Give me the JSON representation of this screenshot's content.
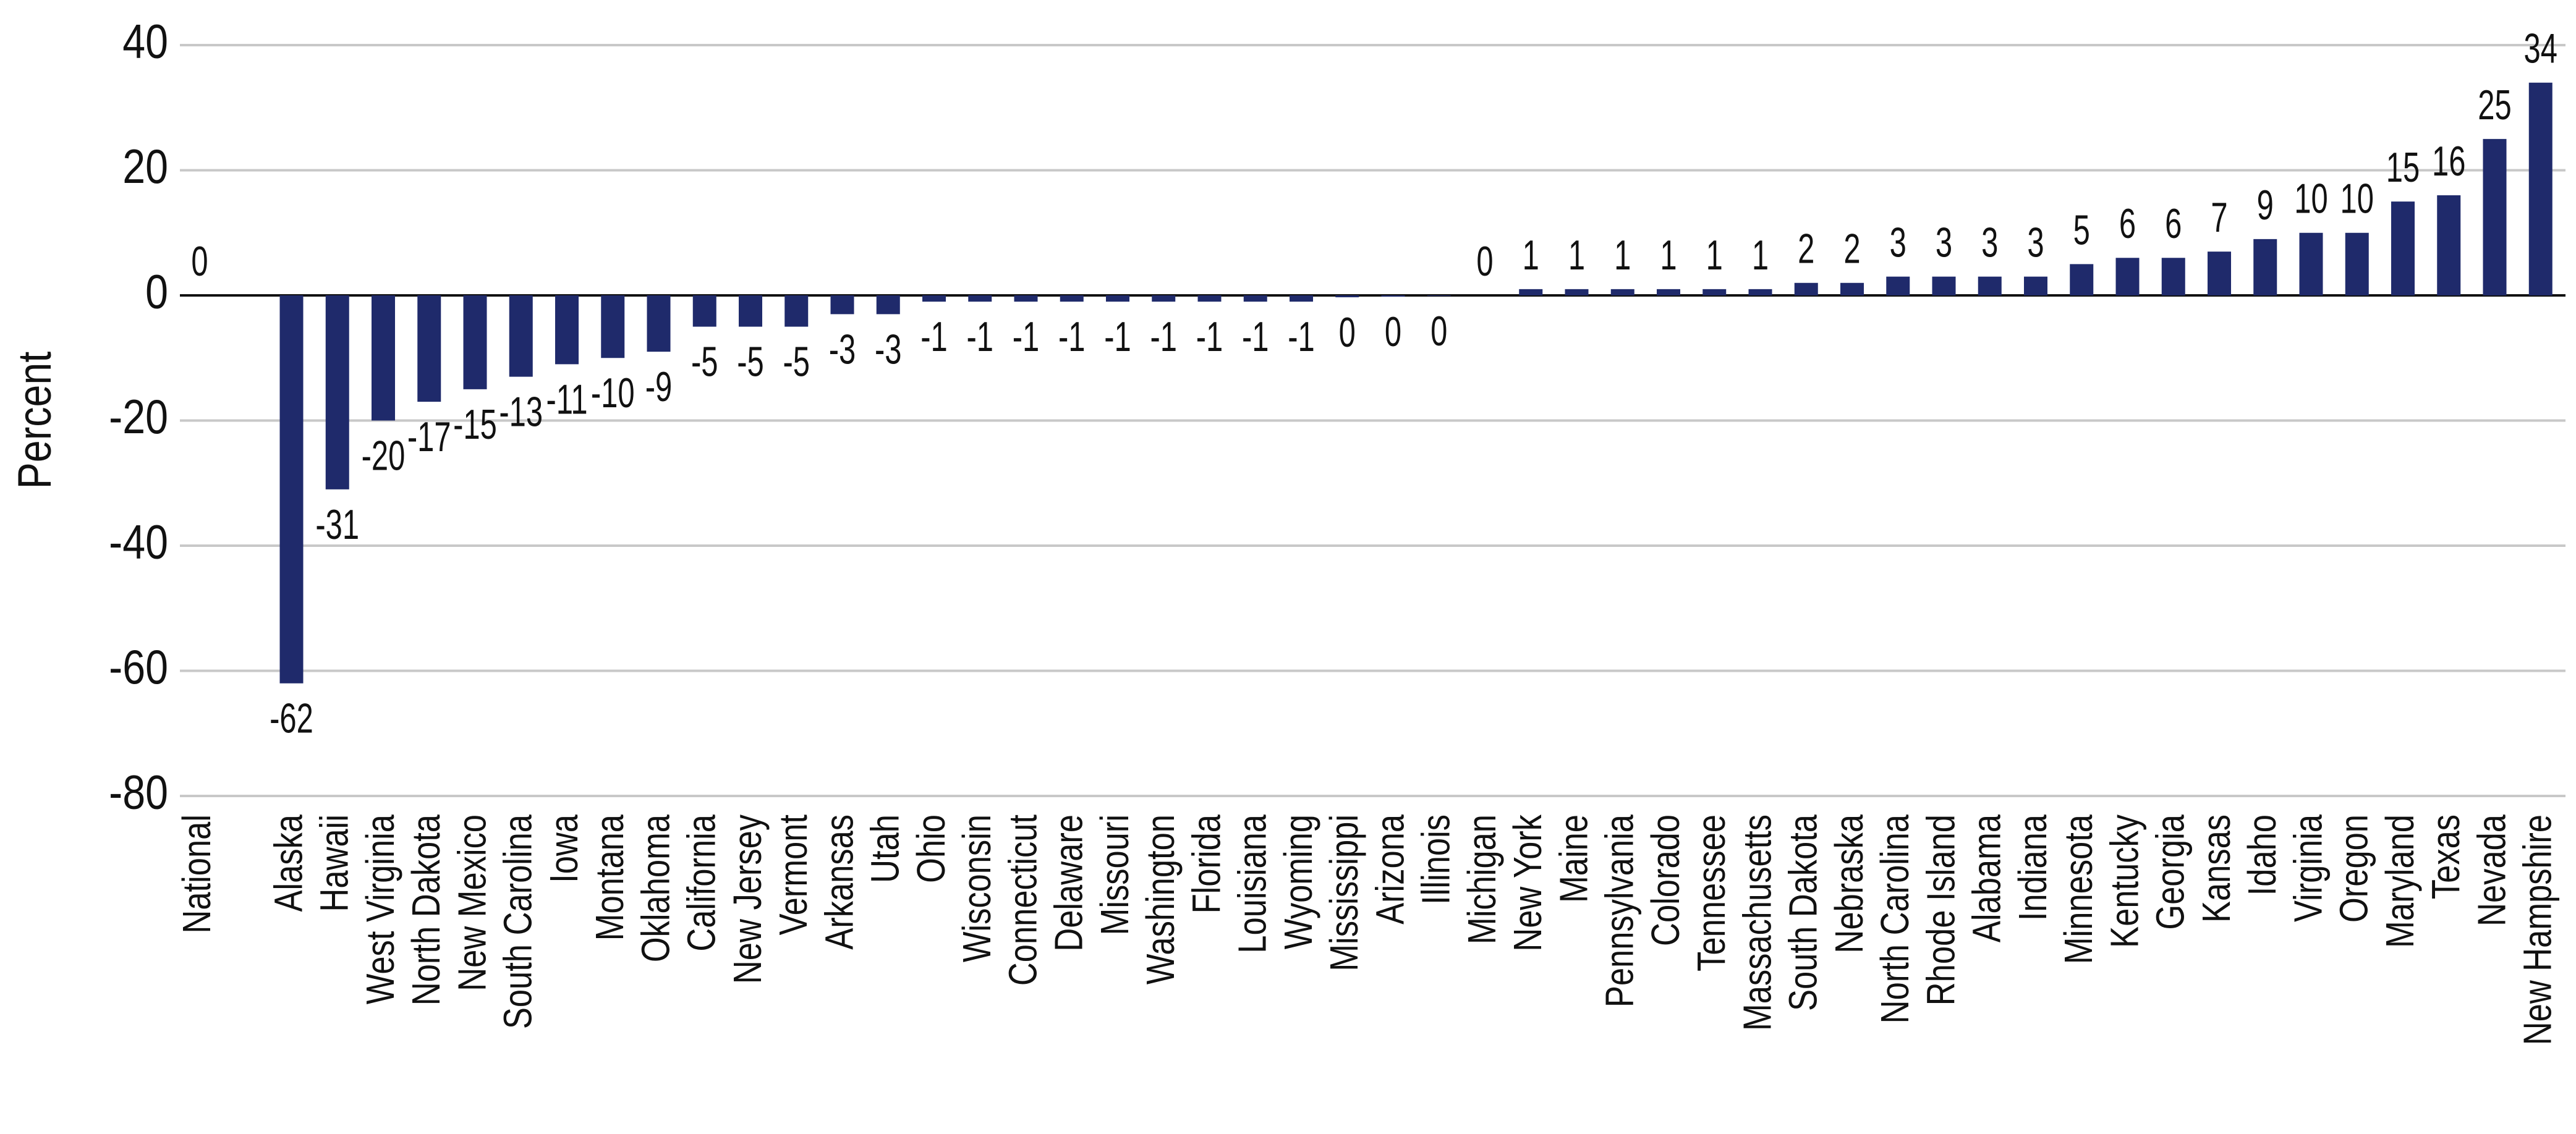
{
  "chart_data": {
    "type": "bar",
    "ylabel": "Percent",
    "categories": [
      "National",
      null,
      "Alaska",
      "Hawaii",
      "West Virginia",
      "North Dakota",
      "New Mexico",
      "South Carolina",
      "Iowa",
      "Montana",
      "Oklahoma",
      "California",
      "New Jersey",
      "Vermont",
      "Arkansas",
      "Utah",
      "Ohio",
      "Wisconsin",
      "Connecticut",
      "Delaware",
      "Missouri",
      "Washington",
      "Florida",
      "Louisiana",
      "Wyoming",
      "Mississippi",
      "Arizona",
      "Illinois",
      "Michigan",
      "New York",
      "Maine",
      "Pennsylvania",
      "Colorado",
      "Tennessee",
      "Massachusetts",
      "South Dakota",
      "Nebraska",
      "North Carolina",
      "Rhode Island",
      "Alabama",
      "Indiana",
      "Minnesota",
      "Kentucky",
      "Georgia",
      "Kansas",
      "Idaho",
      "Virginia",
      "Oregon",
      "Maryland",
      "Texas",
      "Nevada",
      "New Hampshire"
    ],
    "values": [
      0,
      null,
      -62,
      -31,
      -20,
      -17,
      -15,
      -13,
      -11,
      -10,
      -9,
      -5,
      -5,
      -5,
      -3,
      -3,
      -1,
      -1,
      -1,
      -1,
      -1,
      -1,
      -1,
      -1,
      -1,
      -0.3,
      -0.2,
      -0.1,
      0,
      1,
      1,
      1,
      1,
      1,
      1,
      2,
      2,
      3,
      3,
      3,
      3,
      5,
      6,
      6,
      7,
      9,
      10,
      10,
      15,
      16,
      25,
      34
    ],
    "value_labels": [
      "0",
      null,
      "-62",
      "-31",
      "-20",
      "-17",
      "-15",
      "-13",
      "-11",
      "-10",
      "-9",
      "-5",
      "-5",
      "-5",
      "-3",
      "-3",
      "-1",
      "-1",
      "-1",
      "-1",
      "-1",
      "-1",
      "-1",
      "-1",
      "-1",
      "0",
      "0",
      "0",
      "0",
      "1",
      "1",
      "1",
      "1",
      "1",
      "1",
      "2",
      "2",
      "3",
      "3",
      "3",
      "3",
      "5",
      "6",
      "6",
      "7",
      "9",
      "10",
      "10",
      "15",
      "16",
      "25",
      "34"
    ],
    "color": "#1f2a6b",
    "ylim": [
      -80,
      40
    ],
    "yticks": [
      -80,
      -60,
      -40,
      -20,
      0,
      20,
      40
    ],
    "grid": true
  }
}
